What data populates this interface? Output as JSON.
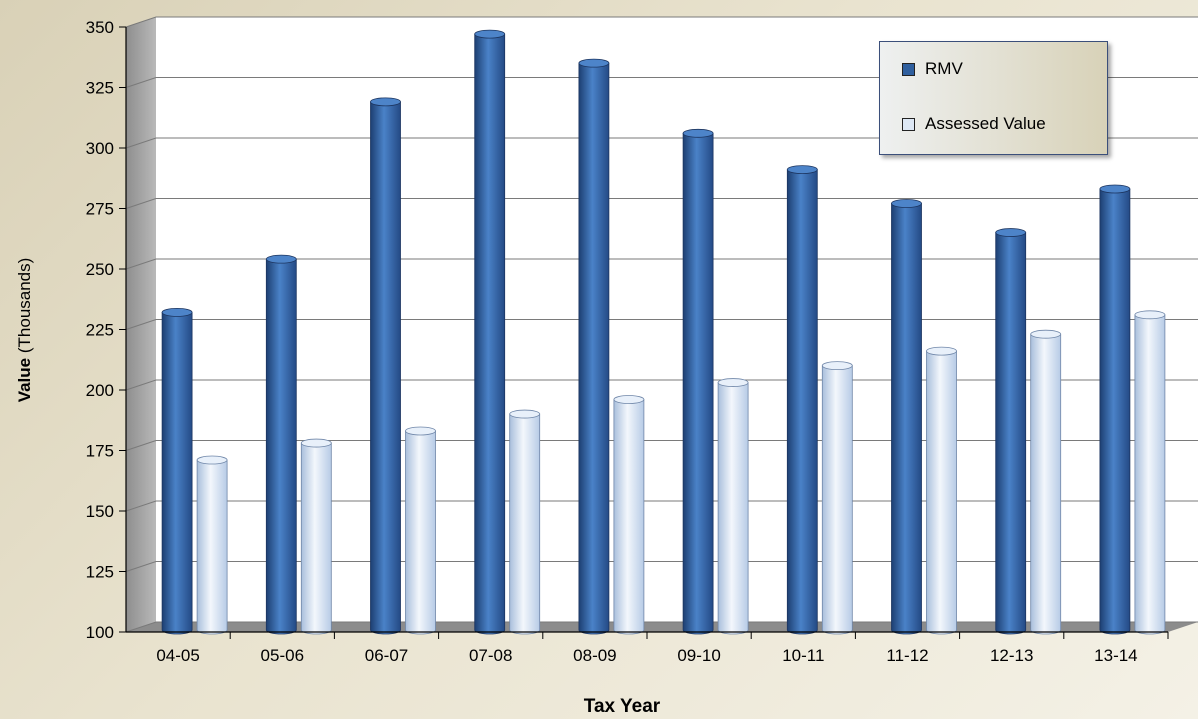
{
  "chart_data": {
    "type": "bar",
    "categories": [
      "04-05",
      "05-06",
      "06-07",
      "07-08",
      "08-09",
      "09-10",
      "10-11",
      "11-12",
      "12-13",
      "13-14"
    ],
    "series": [
      {
        "name": "RMV",
        "values": [
          230,
          252,
          317,
          345,
          333,
          304,
          289,
          275,
          263,
          281
        ],
        "color": "#3b6cb4"
      },
      {
        "name": "Assessed Value",
        "values": [
          169,
          176,
          181,
          188,
          194,
          201,
          208,
          214,
          221,
          229
        ],
        "color": "#d2e0f2"
      }
    ],
    "xlabel": "Tax Year",
    "ylabel_bold": "Value",
    "ylabel_rest": "(Thousands)",
    "ylim": [
      100,
      350
    ],
    "yticks": [
      100,
      125,
      150,
      175,
      200,
      225,
      250,
      275,
      300,
      325,
      350
    ],
    "grid": true,
    "legend_position": "top-right"
  }
}
